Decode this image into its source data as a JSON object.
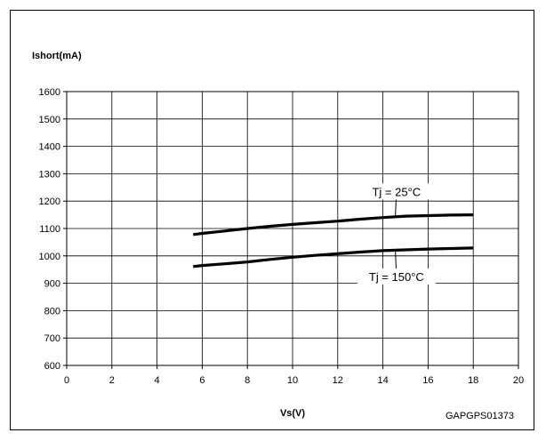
{
  "chart_data": {
    "type": "line",
    "title": "",
    "xlabel": "Vs(V)",
    "ylabel": "Ishort(mA)",
    "xlim": [
      0,
      20
    ],
    "ylim": [
      600,
      1600
    ],
    "x_ticks": [
      0,
      2,
      4,
      6,
      8,
      10,
      12,
      14,
      16,
      18,
      20
    ],
    "y_ticks": [
      600,
      700,
      800,
      900,
      1000,
      1100,
      1200,
      1300,
      1400,
      1500,
      1600
    ],
    "grid": true,
    "legend": "none",
    "series": [
      {
        "name": "Tj = 25°C",
        "color": "#000000",
        "x": [
          5.6,
          6,
          7,
          8,
          9,
          10,
          11,
          12,
          13,
          14,
          15,
          16,
          17,
          18
        ],
        "y": [
          1078,
          1082,
          1091,
          1100,
          1108,
          1115,
          1121,
          1127,
          1134,
          1140,
          1145,
          1147,
          1149,
          1150
        ]
      },
      {
        "name": "Tj = 150°C",
        "color": "#000000",
        "x": [
          5.6,
          6,
          7,
          8,
          9,
          10,
          11,
          12,
          13,
          14,
          15,
          16,
          17,
          18
        ],
        "y": [
          961,
          965,
          971,
          978,
          987,
          995,
          1002,
          1008,
          1014,
          1019,
          1022,
          1025,
          1027,
          1029
        ]
      }
    ]
  },
  "figure_code": "GAPGPS01373"
}
